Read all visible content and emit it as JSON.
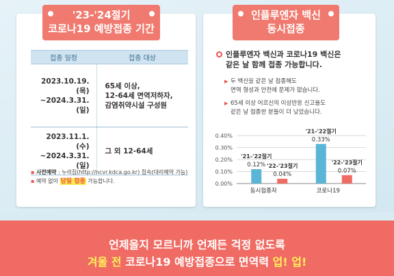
{
  "left_card": {
    "title_line1": "'23-'24절기",
    "title_line2": "코로나19 예방접종 기간",
    "table": {
      "headers": [
        "접종 일정",
        "접종 대상"
      ],
      "rows": [
        {
          "period": "2023.10.19.(목)\n~2024.3.31.(일)",
          "target": "65세 이상,\n12-64세 면역저하자,\n감염취약시설 구성원"
        },
        {
          "period": "2023.11.1.(수)\n~2024.3.31.(일)",
          "target": "그 외 12-64세"
        }
      ]
    },
    "note1_bullet": "▪",
    "note1_label": "사전예약",
    "note1_text": " : 누리집(http://ncvr.kdca.go.kr) 접속(대리예약 가능)",
    "note2_bullet": "▪",
    "note2_pre": "예약 없이 ",
    "note2_highlight": "당일 접종",
    "note2_post": " 가능합니다."
  },
  "right_card": {
    "title_line1": "인플루엔자 백신",
    "title_line2": "동시접종",
    "heading": "인플루엔자 백신과 코로나19 백신은\n같은 날 함께 접종 가능합니다.",
    "sub1": "두 백신을 같은 날 접종해도\n면역 형성과 안전에 문제가 없습니다.",
    "sub2": "65세 이상 어르신의 이상반응 신고율도\n같은 날 접종한 분들이 더 낮았습니다.",
    "bullet_symbol": "▶"
  },
  "chart_data": {
    "type": "bar",
    "categories": [
      "동시접종자",
      "코로나19"
    ],
    "series": [
      {
        "name": "'21-'22절기",
        "values": [
          0.12,
          0.33
        ]
      },
      {
        "name": "'22-'23절기",
        "values": [
          0.04,
          0.07
        ]
      }
    ],
    "value_labels": [
      [
        "0.12%",
        "0.33%"
      ],
      [
        "0.04%",
        "0.07%"
      ]
    ],
    "y_ticks": [
      "0.40%",
      "0.30%",
      "0.20%",
      "0.10%",
      "0.00%"
    ],
    "ylim": [
      0,
      0.4
    ],
    "colors": [
      "#5bb5d6",
      "#ef6b63"
    ],
    "grid": true
  },
  "banner": {
    "line1": "언제올지 모르니까 언제든 걱정 없도록",
    "line2_a": "겨울 전",
    "line2_b": " 코로나19 예방접종으로 면역력 ",
    "line2_c": "업! 업!"
  },
  "colors": {
    "accent_red": "#ef6b63",
    "accent_blue": "#5bb5d6",
    "highlight_yellow": "#fff25a",
    "background": "#d9ebf3"
  }
}
